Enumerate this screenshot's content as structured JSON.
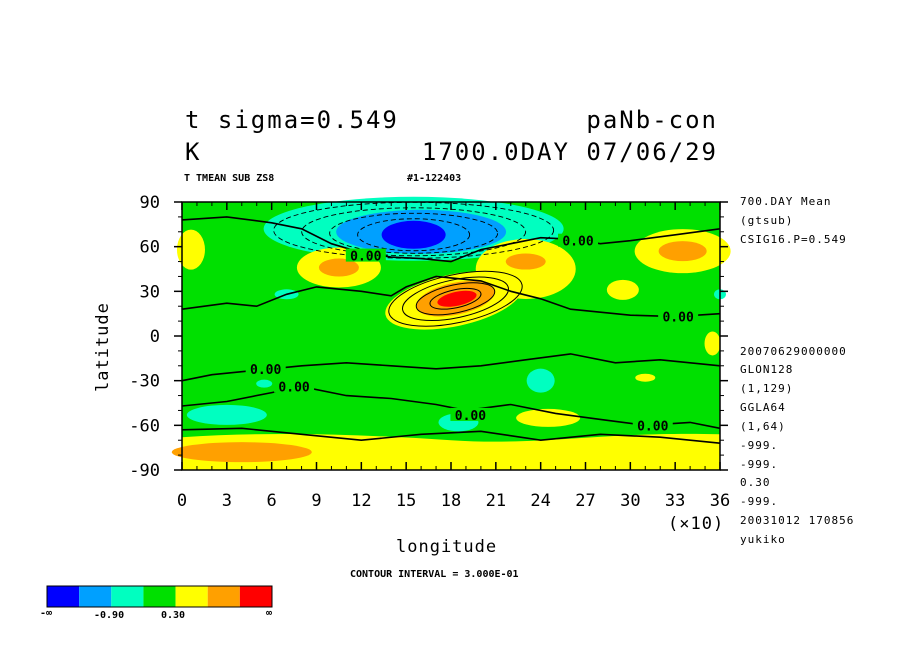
{
  "header": {
    "variable_line": "t sigma=0.549",
    "units": "K",
    "run_name": "paNb-con",
    "time_stamp": "1700.0DAY 07/06/29",
    "subtitle_left": "T TMEAN SUB ZS8",
    "subtitle_right": "#1-122403"
  },
  "side_info": [
    "700.DAY Mean",
    "(gtsub)",
    "CSIG16.P=0.549",
    "20070629000000",
    "GLON128",
    "(1,129)",
    "GGLA64",
    "(1,64)",
    "-999.",
    "-999.",
    "0.30",
    "-999.",
    "20031012 170856",
    "yukiko"
  ],
  "footer": {
    "contour_interval": "CONTOUR INTERVAL = 3.000E-01"
  },
  "colorbar": {
    "colors": [
      "#0000ff",
      "#00a0ff",
      "#00ffc0",
      "#00e000",
      "#ffff00",
      "#ffa000",
      "#ff0000"
    ],
    "labels": [
      "-∞",
      "-0.90",
      "0.30",
      "∞"
    ]
  },
  "chart_data": {
    "type": "contour",
    "xlabel": "longitude",
    "ylabel": "latitude",
    "x_multiplier_label": "(×10)",
    "xlim": [
      0,
      36
    ],
    "ylim": [
      -90,
      90
    ],
    "x_ticks": [
      "0",
      "3",
      "6",
      "9",
      "12",
      "15",
      "18",
      "21",
      "24",
      "27",
      "30",
      "33",
      "36"
    ],
    "y_ticks": [
      "90",
      "60",
      "30",
      "0",
      "-30",
      "-60",
      "-90"
    ],
    "contour_labels": [
      {
        "text": "0.00",
        "x": 12.3,
        "y": 54
      },
      {
        "text": "0.00",
        "x": 26.5,
        "y": 64
      },
      {
        "text": "0.00",
        "x": 33.2,
        "y": 13
      },
      {
        "text": "0.00",
        "x": 5.6,
        "y": -22
      },
      {
        "text": "0.00",
        "x": 7.5,
        "y": -34
      },
      {
        "text": "0.00",
        "x": 19.3,
        "y": -53
      },
      {
        "text": "0.00",
        "x": 31.5,
        "y": -60
      }
    ],
    "features": [
      {
        "kind": "cold-minimum",
        "lon_x10": 15.5,
        "lat": 68,
        "level": "below -0.90"
      },
      {
        "kind": "warm-maximum",
        "lon_x10": 18.3,
        "lat": 25,
        "level": "above 1.5"
      },
      {
        "kind": "warm",
        "lon_x10": 10.5,
        "lat": 47
      },
      {
        "kind": "warm",
        "lon_x10": 23.2,
        "lat": 50
      },
      {
        "kind": "warm",
        "lon_x10": 33.5,
        "lat": 57
      },
      {
        "kind": "warm",
        "lon_x10": 0.5,
        "lat": 57
      },
      {
        "kind": "warm",
        "lon_x10": 3.5,
        "lat": -78
      },
      {
        "kind": "cold",
        "lon_x10": 2.5,
        "lat": -55
      },
      {
        "kind": "cold",
        "lon_x10": 18.5,
        "lat": -58
      },
      {
        "kind": "cold",
        "lon_x10": 24.0,
        "lat": -30
      }
    ]
  }
}
